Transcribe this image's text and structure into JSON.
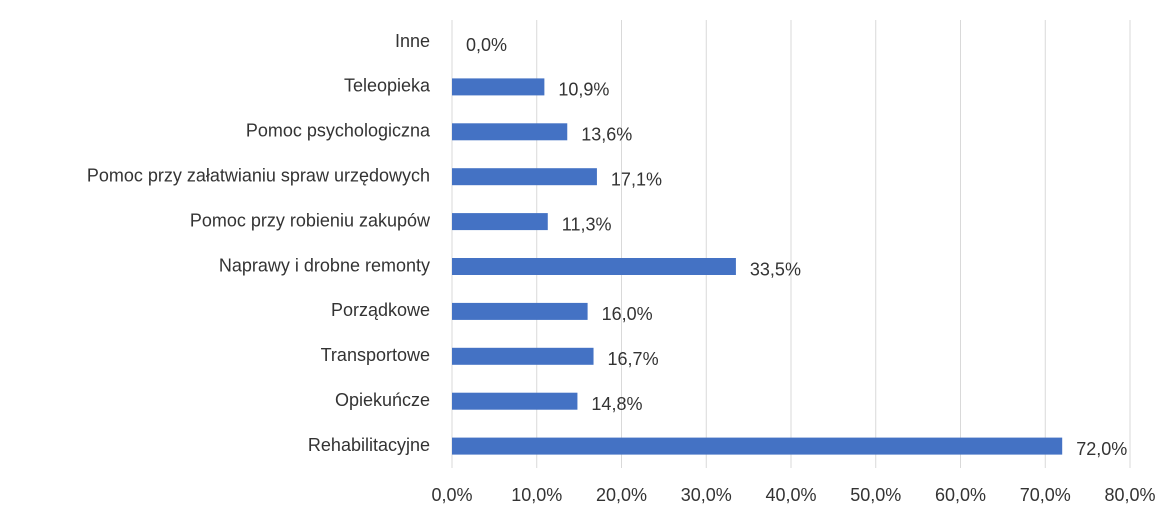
{
  "chart_data": {
    "type": "barh",
    "categories": [
      "Inne",
      "Teleopieka",
      "Pomoc psychologiczna",
      "Pomoc przy załatwianiu spraw urzędowych",
      "Pomoc przy robieniu zakupów",
      "Naprawy i drobne remonty",
      "Porządkowe",
      "Transportowe",
      "Opiekuńcze",
      "Rehabilitacyjne"
    ],
    "values": [
      0,
      10.9,
      13.6,
      17.1,
      11.3,
      33.5,
      16.0,
      16.7,
      14.8,
      72.0
    ],
    "value_labels": [
      "0,0%",
      "10,9%",
      "13,6%",
      "17,1%",
      "11,3%",
      "33,5%",
      "16,0%",
      "16,7%",
      "14,8%",
      "72,0%"
    ],
    "color": "#4472c4",
    "xlim": [
      0,
      80
    ],
    "xticks": [
      {
        "value": 0,
        "label": "0,0%"
      },
      {
        "value": 10,
        "label": "10,0%"
      },
      {
        "value": 20,
        "label": "20,0%"
      },
      {
        "value": 30,
        "label": "30,0%"
      },
      {
        "value": 40,
        "label": "40,0%"
      },
      {
        "value": 50,
        "label": "50,0%"
      },
      {
        "value": 60,
        "label": "60,0%"
      },
      {
        "value": 70,
        "label": "70,0%"
      },
      {
        "value": 80,
        "label": "80,0%"
      }
    ],
    "grid": true
  }
}
